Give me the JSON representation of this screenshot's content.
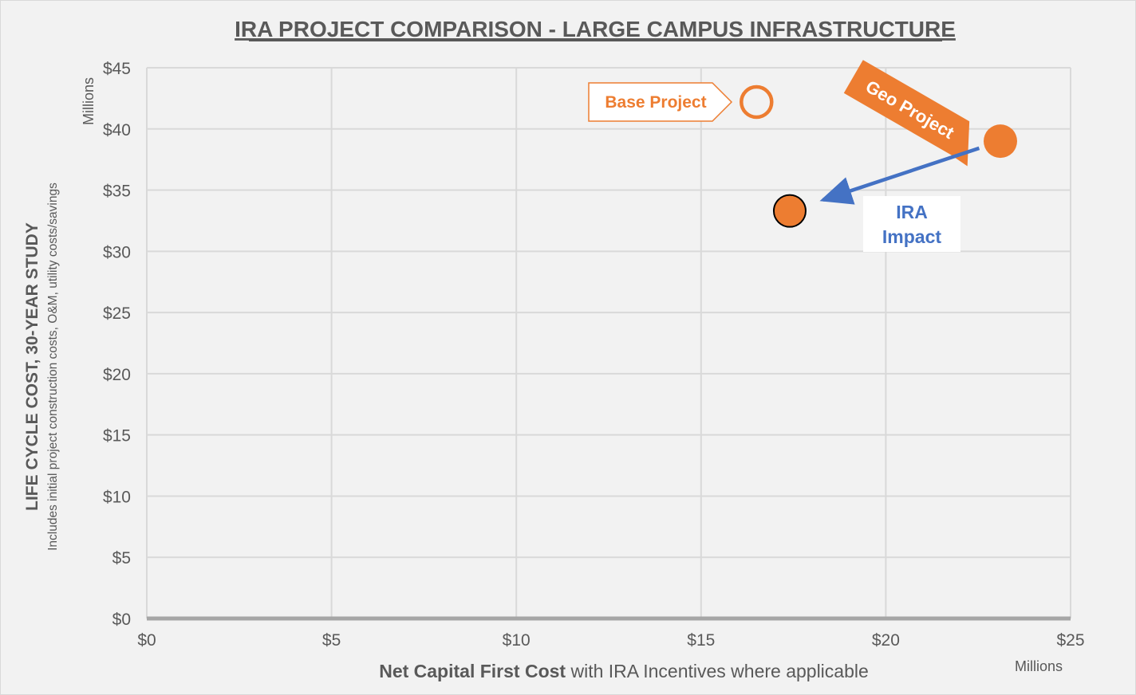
{
  "chart_data": {
    "type": "scatter",
    "title": "IRA PROJECT COMPARISON - LARGE CAMPUS INFRASTRUCTURE",
    "xlabel_bold": "Net Capital First Cost",
    "xlabel_rest": " with IRA Incentives where applicable",
    "ylabel_main": "LIFE CYCLE COST, 30-YEAR STUDY",
    "ylabel_sub": "Includes initial project construction costs, O&M, utility costs/savings",
    "x_units": "Millions",
    "y_units": "Millions",
    "xlim": [
      0,
      25
    ],
    "ylim": [
      0,
      45
    ],
    "x_ticks": [
      0,
      5,
      10,
      15,
      20,
      25
    ],
    "x_tick_labels": [
      "$0",
      "$5",
      "$10",
      "$15",
      "$20",
      "$25"
    ],
    "y_ticks": [
      0,
      5,
      10,
      15,
      20,
      25,
      30,
      35,
      40,
      45
    ],
    "y_tick_labels": [
      "$0",
      "$5",
      "$10",
      "$15",
      "$20",
      "$25",
      "$30",
      "$35",
      "$40",
      "$45"
    ],
    "grid": true,
    "points": [
      {
        "name": "Base Project",
        "x": 16.5,
        "y": 42.2,
        "style": "hollow",
        "label": "Base Project"
      },
      {
        "name": "Geo Project",
        "x": 23.1,
        "y": 39.0,
        "style": "filled",
        "label": "Geo Project"
      },
      {
        "name": "Geo Project with IRA",
        "x": 17.4,
        "y": 33.3,
        "style": "filled-outlined"
      }
    ],
    "annotation": {
      "text_line1": "IRA",
      "text_line2": "Impact",
      "from_x": 23.1,
      "from_y": 39.0,
      "to_x": 17.4,
      "to_y": 33.3
    },
    "colors": {
      "orange": "#ed7d31",
      "blue": "#4472c4",
      "grid": "#d9d9d9",
      "text": "#595959",
      "axis": "#a6a6a6"
    }
  }
}
